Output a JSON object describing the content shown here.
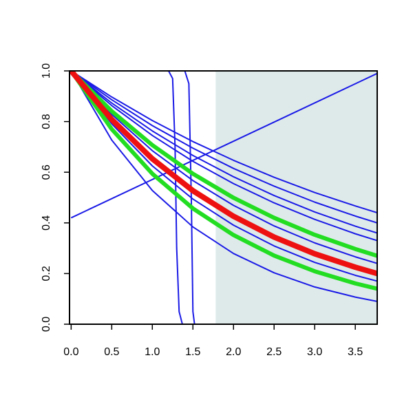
{
  "chart_data": {
    "type": "line",
    "xlim": [
      -0.02,
      3.77
    ],
    "ylim": [
      0,
      1
    ],
    "xticks": [
      {
        "value": 0,
        "label": "0.0"
      },
      {
        "value": 0.5,
        "label": "0.5"
      },
      {
        "value": 1,
        "label": "1.0"
      },
      {
        "value": 1.5,
        "label": "1.5"
      },
      {
        "value": 2,
        "label": "2.0"
      },
      {
        "value": 2.5,
        "label": "2.5"
      },
      {
        "value": 3,
        "label": "3.0"
      },
      {
        "value": 3.5,
        "label": "3.5"
      }
    ],
    "yticks": [
      {
        "value": 0,
        "label": "0.0"
      },
      {
        "value": 0.2,
        "label": "0.2"
      },
      {
        "value": 0.4,
        "label": "0.4"
      },
      {
        "value": 0.6,
        "label": "0.6"
      },
      {
        "value": 0.8,
        "label": "0.8"
      },
      {
        "value": 1,
        "label": "1.0"
      }
    ],
    "shaded_region": [
      1.78,
      3.77
    ],
    "shade_color": "#deeaea",
    "series": [
      {
        "color": "#1a1ae6",
        "width": 2,
        "x": [
          0,
          1.5
        ],
        "values": [
          1,
          1
        ]
      },
      {
        "color": "#1a1ae6",
        "width": 2,
        "x": [
          1.3,
          3.77
        ],
        "values": [
          0,
          0
        ]
      },
      {
        "color": "#1a1ae6",
        "width": 2,
        "x": [
          0,
          1.2,
          1.25,
          1.28,
          1.3,
          1.33,
          1.37,
          1.4
        ],
        "values": [
          1,
          1,
          0.97,
          0.7,
          0.3,
          0.05,
          0,
          0
        ]
      },
      {
        "color": "#1a1ae6",
        "width": 2,
        "x": [
          0,
          1.4,
          1.45,
          1.48,
          1.5,
          1.52
        ],
        "values": [
          1,
          1,
          0.95,
          0.5,
          0.05,
          0
        ]
      },
      {
        "color": "#1a1ae6",
        "width": 2,
        "x": [
          0,
          3.77
        ],
        "values": [
          0.42,
          0.99
        ]
      },
      {
        "color": "#1a1ae6",
        "width": 2,
        "x": [
          0,
          0.5,
          1,
          1.5,
          2,
          2.5,
          3,
          3.5,
          3.77
        ],
        "values": [
          1,
          0.897,
          0.804,
          0.721,
          0.647,
          0.58,
          0.52,
          0.467,
          0.44
        ]
      },
      {
        "color": "#1a1ae6",
        "width": 2,
        "x": [
          0,
          0.5,
          1,
          1.5,
          2,
          2.5,
          3,
          3.5,
          3.77
        ],
        "values": [
          1,
          0.886,
          0.784,
          0.695,
          0.615,
          0.545,
          0.482,
          0.427,
          0.4
        ]
      },
      {
        "color": "#1a1ae6",
        "width": 2,
        "x": [
          0,
          0.5,
          1,
          1.5,
          2,
          2.5,
          3,
          3.5,
          3.77
        ],
        "values": [
          1,
          0.873,
          0.763,
          0.666,
          0.582,
          0.508,
          0.443,
          0.387,
          0.36
        ]
      },
      {
        "color": "#1a1ae6",
        "width": 2,
        "x": [
          0,
          0.5,
          1,
          1.5,
          2,
          2.5,
          3,
          3.5,
          3.77
        ],
        "values": [
          1,
          0.863,
          0.745,
          0.643,
          0.555,
          0.479,
          0.414,
          0.357,
          0.33
        ]
      },
      {
        "color": "#1a1ae6",
        "width": 2,
        "x": [
          0,
          0.5,
          1,
          1.5,
          2,
          2.5,
          3,
          3.5,
          3.77
        ],
        "values": [
          1,
          0.828,
          0.685,
          0.567,
          0.469,
          0.388,
          0.321,
          0.266,
          0.24
        ]
      },
      {
        "color": "#1a1ae6",
        "width": 2,
        "x": [
          0,
          0.5,
          1,
          1.5,
          2,
          2.5,
          3,
          3.5,
          3.77
        ],
        "values": [
          1,
          0.791,
          0.625,
          0.494,
          0.391,
          0.309,
          0.244,
          0.193,
          0.17
        ]
      },
      {
        "color": "#1a1ae6",
        "width": 2,
        "x": [
          0,
          0.5,
          1,
          1.5,
          2,
          2.5,
          3,
          3.5,
          3.77
        ],
        "values": [
          1,
          0.727,
          0.528,
          0.384,
          0.279,
          0.203,
          0.147,
          0.107,
          0.09
        ]
      },
      {
        "color": "#22dd22",
        "width": 6,
        "x": [
          0,
          0.5,
          1,
          1.5,
          2,
          2.5,
          3,
          3.5,
          3.77
        ],
        "values": [
          1,
          0.841,
          0.707,
          0.594,
          0.499,
          0.42,
          0.353,
          0.297,
          0.27
        ]
      },
      {
        "color": "#22dd22",
        "width": 6,
        "x": [
          0,
          0.5,
          1,
          1.5,
          2,
          2.5,
          3,
          3.5,
          3.77
        ],
        "values": [
          1,
          0.77,
          0.594,
          0.457,
          0.352,
          0.271,
          0.209,
          0.161,
          0.14
        ]
      },
      {
        "color": "#ee1111",
        "width": 8,
        "x": [
          0,
          0.5,
          1,
          1.5,
          2,
          2.5,
          3,
          3.5,
          3.77
        ],
        "values": [
          1,
          0.808,
          0.653,
          0.527,
          0.426,
          0.344,
          0.278,
          0.225,
          0.2
        ]
      }
    ]
  }
}
